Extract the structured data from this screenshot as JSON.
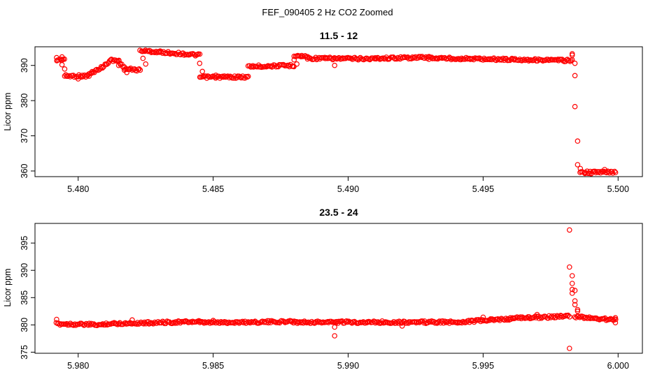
{
  "figure_title": "FEF_090405  2 Hz CO2 Zoomed",
  "point_color": "#ff0000",
  "chart_data": [
    {
      "type": "scatter",
      "title": "11.5 - 12",
      "xlabel": "",
      "ylabel": "Licor ppm",
      "xlim": [
        5.4784,
        5.5009
      ],
      "ylim": [
        358.4,
        395.3
      ],
      "xticks": [
        5.48,
        5.485,
        5.49,
        5.495,
        5.5
      ],
      "xtick_labels": [
        "5.480",
        "5.485",
        "5.490",
        "5.495",
        "5.500"
      ],
      "yticks": [
        360,
        370,
        380,
        390
      ],
      "ytick_labels": [
        "360",
        "370",
        "380",
        "390"
      ],
      "grid": false,
      "legend": "none",
      "series": [
        {
          "segments": [
            {
              "x": [
                5.4792,
                5.4795
              ],
              "y": [
                391.5,
                391.8
              ]
            },
            {
              "x": [
                5.4795,
                5.4804
              ],
              "y": [
                387.0,
                387.0
              ]
            },
            {
              "x": [
                5.4804,
                5.4809
              ],
              "y": [
                387.5,
                389.5
              ]
            },
            {
              "x": [
                5.4809,
                5.4812
              ],
              "y": [
                389.5,
                391.5
              ]
            },
            {
              "x": [
                5.4812,
                5.4815
              ],
              "y": [
                391.5,
                391.3
              ]
            },
            {
              "x": [
                5.4815,
                5.4817
              ],
              "y": [
                391.3,
                389.3
              ]
            },
            {
              "x": [
                5.4817,
                5.4823
              ],
              "y": [
                389.0,
                388.7
              ]
            },
            {
              "x": [
                5.4823,
                5.483
              ],
              "y": [
                394.2,
                393.8
              ]
            },
            {
              "x": [
                5.483,
                5.4845
              ],
              "y": [
                393.8,
                392.9
              ]
            },
            {
              "x": [
                5.4845,
                5.4863
              ],
              "y": [
                386.7,
                386.7
              ]
            },
            {
              "x": [
                5.4863,
                5.488
              ],
              "y": [
                389.7,
                390.0
              ]
            },
            {
              "x": [
                5.488,
                5.4885
              ],
              "y": [
                392.8,
                392.5
              ]
            },
            {
              "x": [
                5.4885,
                5.491
              ],
              "y": [
                392.0,
                391.9
              ]
            },
            {
              "x": [
                5.491,
                5.493
              ],
              "y": [
                392.0,
                392.3
              ]
            },
            {
              "x": [
                5.493,
                5.4983
              ],
              "y": [
                392.1,
                391.4
              ]
            },
            {
              "x": [
                5.4986,
                5.4999
              ],
              "y": [
                359.6,
                359.7
              ]
            }
          ],
          "points": [
            [
              5.4792,
              392.2
            ],
            [
              5.4794,
              392.4
            ],
            [
              5.4794,
              390.2
            ],
            [
              5.4795,
              389.0
            ],
            [
              5.48,
              386.2
            ],
            [
              5.4805,
              387.8
            ],
            [
              5.4815,
              390.0
            ],
            [
              5.4818,
              388.0
            ],
            [
              5.4824,
              392.0
            ],
            [
              5.4825,
              390.4
            ],
            [
              5.4845,
              390.6
            ],
            [
              5.4846,
              388.3
            ],
            [
              5.4851,
              387.2
            ],
            [
              5.488,
              391.6
            ],
            [
              5.4881,
              390.4
            ],
            [
              5.4895,
              390.0
            ],
            [
              5.4983,
              392.9
            ],
            [
              5.4983,
              393.3
            ],
            [
              5.4984,
              390.6
            ],
            [
              5.4984,
              387.1
            ],
            [
              5.4984,
              378.3
            ],
            [
              5.4985,
              368.5
            ],
            [
              5.4985,
              361.8
            ],
            [
              5.4986,
              360.7
            ],
            [
              5.499,
              359.2
            ],
            [
              5.4995,
              360.4
            ]
          ]
        }
      ]
    },
    {
      "type": "scatter",
      "title": "23.5 - 24",
      "xlabel": "",
      "ylabel": "Licor ppm",
      "xlim": [
        5.9784,
        6.0009
      ],
      "ylim": [
        374.8,
        398.6
      ],
      "xticks": [
        5.98,
        5.985,
        5.99,
        5.995,
        6.0
      ],
      "xtick_labels": [
        "5.980",
        "5.985",
        "5.990",
        "5.995",
        "6.000"
      ],
      "yticks": [
        375,
        380,
        385,
        390,
        395
      ],
      "ytick_labels": [
        "375",
        "380",
        "385",
        "390",
        "395"
      ],
      "grid": false,
      "legend": "none",
      "series": [
        {
          "segments": [
            {
              "x": [
                5.9792,
                5.981
              ],
              "y": [
                380.2,
                380.0
              ]
            },
            {
              "x": [
                5.981,
                5.9845
              ],
              "y": [
                380.2,
                380.6
              ]
            },
            {
              "x": [
                5.9845,
                5.988
              ],
              "y": [
                380.4,
                380.6
              ]
            },
            {
              "x": [
                5.988,
                5.994
              ],
              "y": [
                380.5,
                380.5
              ]
            },
            {
              "x": [
                5.994,
                5.996
              ],
              "y": [
                380.5,
                381.1
              ]
            },
            {
              "x": [
                5.996,
                5.9982
              ],
              "y": [
                381.2,
                381.6
              ]
            },
            {
              "x": [
                5.9984,
                5.9999
              ],
              "y": [
                381.5,
                380.9
              ]
            }
          ],
          "points": [
            [
              5.9792,
              381.0
            ],
            [
              5.982,
              380.9
            ],
            [
              5.985,
              380.8
            ],
            [
              5.9895,
              378.0
            ],
            [
              5.9895,
              379.6
            ],
            [
              5.992,
              379.8
            ],
            [
              5.995,
              381.4
            ],
            [
              5.997,
              381.9
            ],
            [
              5.9982,
              397.4
            ],
            [
              5.9982,
              375.7
            ],
            [
              5.9982,
              390.6
            ],
            [
              5.9983,
              389.0
            ],
            [
              5.9983,
              387.6
            ],
            [
              5.9983,
              386.5
            ],
            [
              5.9983,
              385.8
            ],
            [
              5.9984,
              386.3
            ],
            [
              5.9984,
              384.4
            ],
            [
              5.9984,
              383.7
            ],
            [
              5.9985,
              382.8
            ],
            [
              5.9985,
              382.5
            ],
            [
              5.9999,
              380.4
            ],
            [
              5.9999,
              381.3
            ]
          ]
        }
      ]
    }
  ]
}
